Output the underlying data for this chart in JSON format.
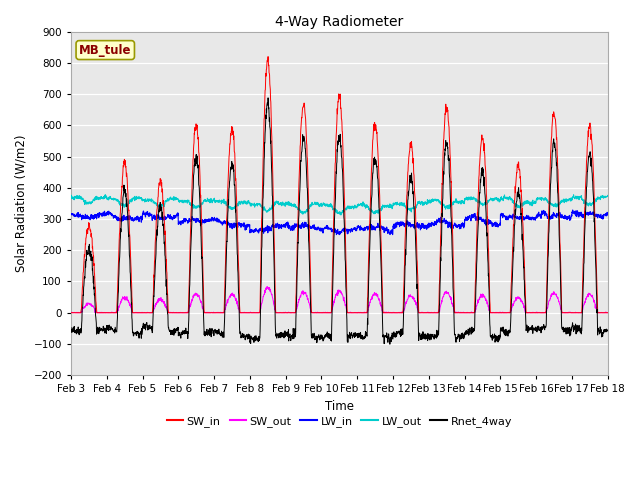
{
  "title": "4-Way Radiometer",
  "xlabel": "Time",
  "ylabel": "Solar Radiation (W/m2)",
  "ylim": [
    -200,
    900
  ],
  "yticks": [
    -200,
    -100,
    0,
    100,
    200,
    300,
    400,
    500,
    600,
    700,
    800,
    900
  ],
  "x_labels": [
    "Feb 3",
    "Feb 4",
    "Feb 5",
    "Feb 6",
    "Feb 7",
    "Feb 8",
    "Feb 9",
    "Feb 10",
    "Feb 11",
    "Feb 12",
    "Feb 13",
    "Feb 14",
    "Feb 15",
    "Feb 16",
    "Feb 17",
    "Feb 18"
  ],
  "station_label": "MB_tule",
  "station_label_color": "#8B0000",
  "station_box_facecolor": "#FFFFCC",
  "station_box_edgecolor": "#999900",
  "bg_color": "#E8E8E8",
  "line_colors": {
    "SW_in": "#FF0000",
    "SW_out": "#FF00FF",
    "LW_in": "#0000FF",
    "LW_out": "#00CCCC",
    "Rnet_4way": "#000000"
  },
  "sw_in_peaks": [
    280,
    480,
    420,
    600,
    590,
    810,
    670,
    695,
    610,
    540,
    660,
    560,
    470,
    640,
    600
  ],
  "n_days": 15,
  "pts_per_day": 144
}
